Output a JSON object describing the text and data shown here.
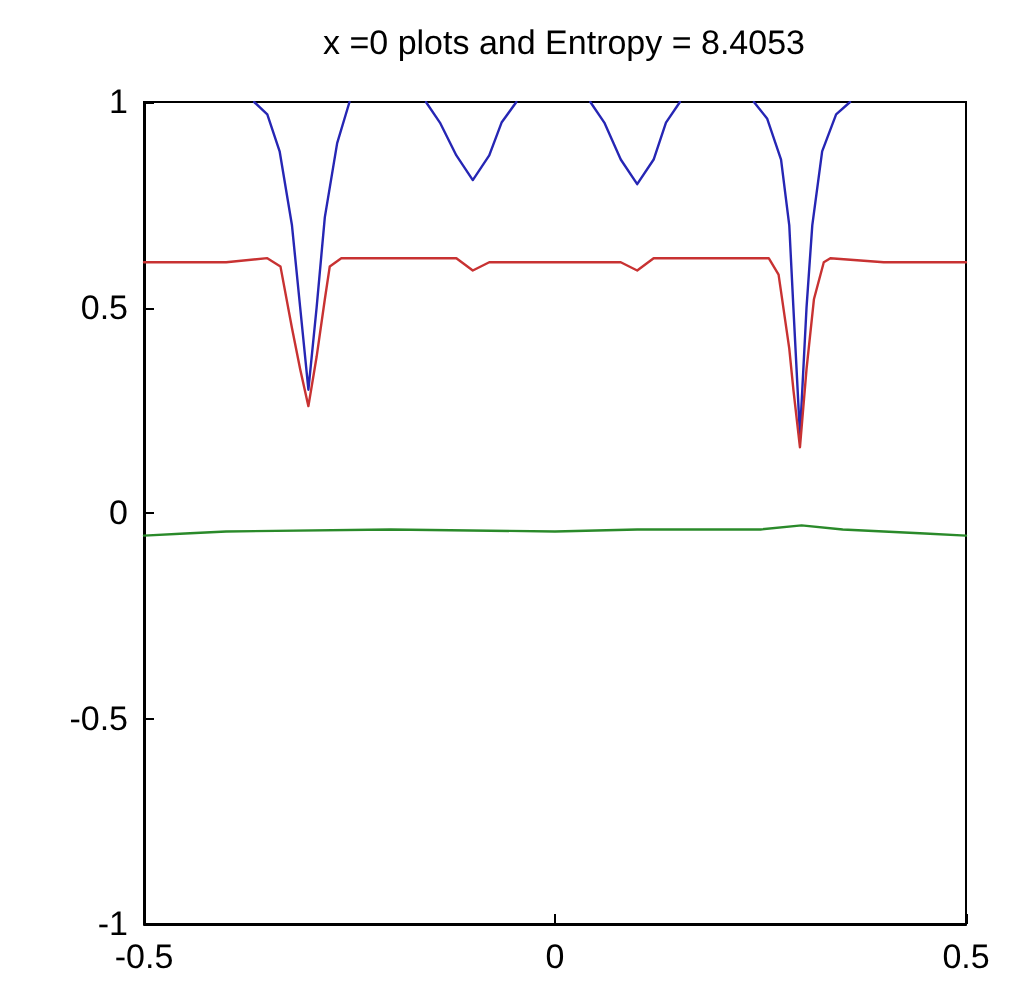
{
  "chart_data": {
    "type": "line",
    "title": "x =0 plots and Entropy = 8.4053",
    "xlim": [
      -0.5,
      0.5
    ],
    "xticks": [
      -0.5,
      0,
      0.5
    ],
    "ylim": [
      -1,
      1
    ],
    "yticks": [
      -1,
      -0.5,
      0,
      0.5,
      1
    ],
    "grid": false,
    "marker": "none",
    "line_style": "solid",
    "series": [
      {
        "color": "#2626b4",
        "x": [
          -0.366,
          -0.35,
          -0.335,
          -0.32,
          -0.31,
          -0.3,
          -0.29,
          -0.28,
          -0.265,
          -0.25,
          -0.2,
          -0.157,
          -0.14,
          -0.12,
          -0.1,
          -0.08,
          -0.065,
          -0.047,
          0,
          0.043,
          0.06,
          0.08,
          0.1,
          0.12,
          0.135,
          0.152,
          0.2,
          0.242,
          0.258,
          0.275,
          0.285,
          0.29,
          0.298,
          0.306,
          0.313,
          0.325,
          0.342,
          0.359
        ],
        "values": [
          1,
          0.97,
          0.88,
          0.7,
          0.5,
          0.3,
          0.5,
          0.72,
          0.9,
          1,
          null,
          1,
          0.95,
          0.87,
          0.81,
          0.87,
          0.95,
          1,
          null,
          1,
          0.95,
          0.86,
          0.8,
          0.86,
          0.95,
          1,
          null,
          1,
          0.96,
          0.86,
          0.7,
          0.5,
          0.19,
          0.5,
          0.7,
          0.88,
          0.97,
          1
        ]
      },
      {
        "color": "#c83232",
        "x": [
          -0.5,
          -0.4,
          -0.35,
          -0.334,
          -0.32,
          -0.31,
          -0.3,
          -0.29,
          -0.28,
          -0.274,
          -0.26,
          -0.12,
          -0.1,
          -0.08,
          0.08,
          0.1,
          0.12,
          0.26,
          0.272,
          0.285,
          0.29,
          0.298,
          0.306,
          0.315,
          0.327,
          0.335,
          0.4,
          0.5
        ],
        "values": [
          0.61,
          0.61,
          0.62,
          0.6,
          0.45,
          0.35,
          0.26,
          0.38,
          0.52,
          0.6,
          0.62,
          0.62,
          0.59,
          0.61,
          0.61,
          0.59,
          0.62,
          0.62,
          0.58,
          0.4,
          0.3,
          0.16,
          0.35,
          0.52,
          0.61,
          0.62,
          0.61,
          0.61
        ]
      },
      {
        "color": "#2a8a2a",
        "x": [
          -0.5,
          -0.45,
          -0.4,
          -0.2,
          0,
          0.1,
          0.2,
          0.25,
          0.3,
          0.35,
          0.4,
          0.45,
          0.5
        ],
        "values": [
          -0.055,
          -0.05,
          -0.045,
          -0.04,
          -0.045,
          -0.04,
          -0.04,
          -0.04,
          -0.03,
          -0.04,
          -0.045,
          -0.05,
          -0.055
        ]
      }
    ]
  }
}
